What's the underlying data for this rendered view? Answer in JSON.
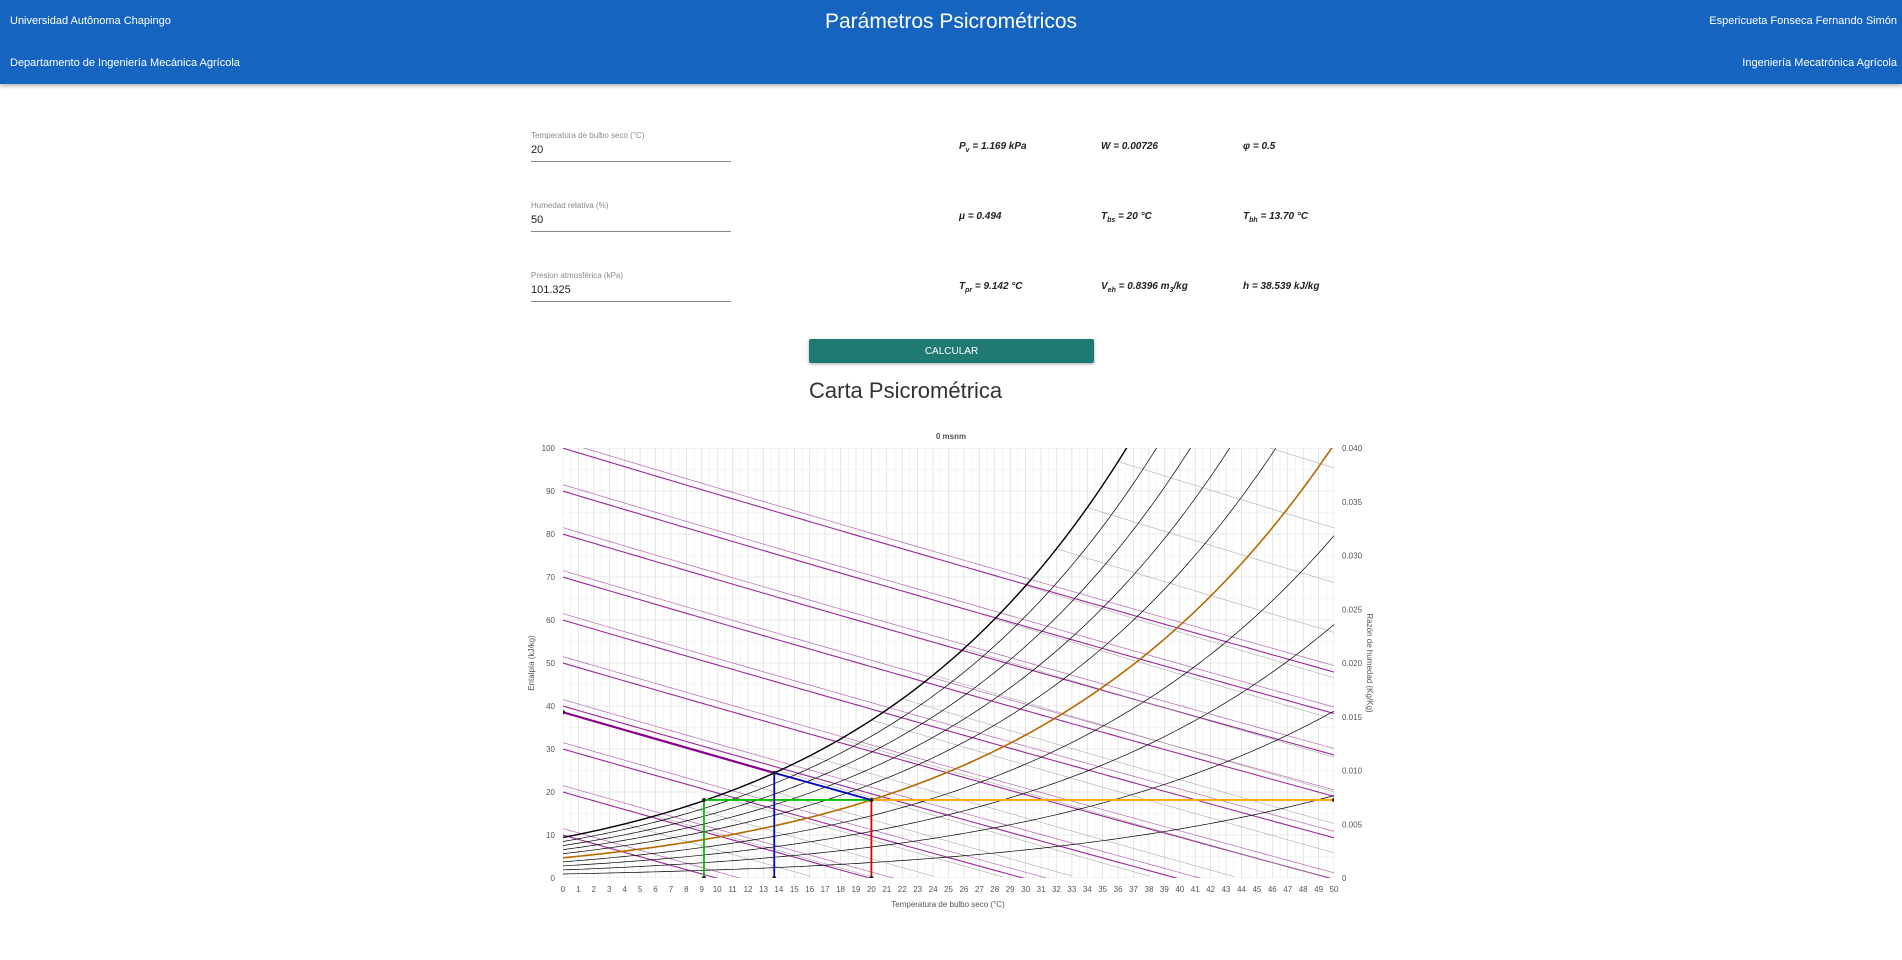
{
  "header": {
    "university": "Universidad Autônoma Chapingo",
    "department": "Departamento de Ingeniería Mecánica Agrícola",
    "title": "Parámetros Psicrométricos",
    "author": "Espericueta Fonseca Fernando Simón",
    "program": "Ingeniería Mecatrónica Agrícola"
  },
  "inputs": {
    "dry_bulb": {
      "label": "Temperatura de bulbo seco (°C)",
      "value": "20"
    },
    "relative_humidity": {
      "label": "Humedad relativa (%)",
      "value": "50"
    },
    "pressure": {
      "label": "Presion atmosférica (kPa)",
      "value": "101.325"
    }
  },
  "results": {
    "pv": {
      "sym": "P",
      "sub": "v",
      "rest": " = 1.169 kPa"
    },
    "w": {
      "sym": "W",
      "sub": "",
      "rest": " = 0.00726"
    },
    "phi": {
      "sym": "φ",
      "sub": "",
      "rest": " = 0.5"
    },
    "mu": {
      "sym": "μ",
      "sub": "",
      "rest": " = 0.494"
    },
    "tbs": {
      "sym": "T",
      "sub": "bs",
      "rest": " = 20 °C"
    },
    "tbh": {
      "sym": "T",
      "sub": "bh",
      "rest": " = 13.70 °C"
    },
    "tpr": {
      "sym": "T",
      "sub": "pr",
      "rest": " = 9.142 °C"
    },
    "veh": {
      "sym": "V",
      "sub": "eh",
      "rest": " = 0.8396 m",
      "sub2": "3",
      "rest2": "/kg"
    },
    "h": {
      "sym": "h",
      "sub": "",
      "rest": " = 38.539 kJ/kg"
    }
  },
  "calculate_label": "CALCULAR",
  "chart_heading": "Carta Psicrométrica",
  "colors": {
    "header": "#1565c0",
    "button": "#1f7a72",
    "saturation": "#000000",
    "rh_current": "#b36b00",
    "enthalpy": "#8b008b",
    "dew_point": "#00c000",
    "wet_bulb": "#0000c0",
    "dry_bulb": "#e00000",
    "humidity_ratio": "#ffa500"
  },
  "chart_data": {
    "type": "line",
    "title": "0 msnm",
    "xlabel": "Temperatura de bulbo seco (°C)",
    "ylabel_left": "Entalpía (kJ/kg)",
    "ylabel_right": "Razón de humedad (Kg/Kg)",
    "xlim": [
      0,
      50
    ],
    "ylim_left": [
      0,
      100
    ],
    "ylim_right": [
      0,
      0.04
    ],
    "x_ticks": [
      "0",
      "1",
      "2",
      "3",
      "4",
      "5",
      "6",
      "7",
      "8",
      "9",
      "10",
      "11",
      "12",
      "13",
      "14",
      "15",
      "16",
      "17",
      "18",
      "19",
      "20",
      "21",
      "22",
      "23",
      "24",
      "25",
      "26",
      "27",
      "28",
      "29",
      "30",
      "31",
      "32",
      "33",
      "34",
      "35",
      "36",
      "37",
      "38",
      "39",
      "40",
      "41",
      "42",
      "43",
      "44",
      "45",
      "46",
      "47",
      "48",
      "49",
      "50"
    ],
    "y_left_ticks": [
      "0",
      "10",
      "20",
      "30",
      "40",
      "50",
      "60",
      "70",
      "80",
      "90",
      "100"
    ],
    "y_right_ticks": [
      "0",
      "0.005",
      "0.010",
      "0.015",
      "0.020",
      "0.025",
      "0.030",
      "0.035",
      "0.040"
    ],
    "grid": true,
    "pressure_kpa": 101.325,
    "rh_curves": [
      0.1,
      0.2,
      0.3,
      0.4,
      0.5,
      0.6,
      0.7,
      0.8,
      0.9,
      1.0
    ],
    "enthalpy_lines": [
      10,
      20,
      30,
      40,
      50,
      60,
      70,
      80,
      90,
      100
    ],
    "state_point": {
      "tbs": 20,
      "tbh": 13.7,
      "tpr": 9.142,
      "w": 0.00726,
      "h": 38.539
    }
  }
}
